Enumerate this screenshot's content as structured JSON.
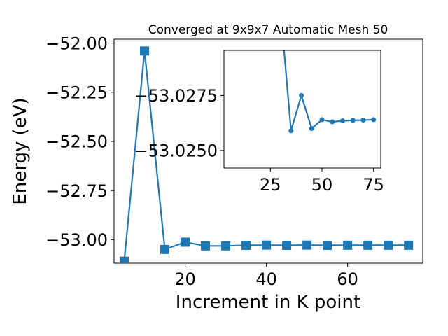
{
  "chart_data": [
    {
      "type": "line",
      "title": "Converged at 9x9x7 Automatic Mesh 50",
      "xlabel": "Increment in K point",
      "ylabel": "Energy (eV)",
      "xlim": [
        2.5,
        78.5
      ],
      "ylim": [
        -53.12,
        -51.98
      ],
      "x_ticks": [
        20,
        40,
        60
      ],
      "x_tick_labels": [
        "20",
        "40",
        "60"
      ],
      "y_ticks": [
        -53.0,
        -52.75,
        -52.5,
        -52.25,
        -52.0
      ],
      "y_tick_labels": [
        "−53.00",
        "−52.75",
        "−52.50",
        "−52.25",
        "−52.00"
      ],
      "marker": "square",
      "color": "#1f77b4",
      "series": [
        {
          "x": [
            5,
            10,
            15,
            20,
            25,
            30,
            35,
            40,
            45,
            50,
            55,
            60,
            65,
            70,
            75
          ],
          "y": [
            -53.11,
            -52.04,
            -53.05,
            -53.013,
            -53.032,
            -53.032,
            -53.029,
            -53.028,
            -53.029,
            -53.028,
            -53.029,
            -53.0285,
            -53.0287,
            -53.0286,
            -53.0286
          ]
        }
      ]
    },
    {
      "type": "line",
      "title": "",
      "xlabel": "",
      "ylabel": "",
      "xlim": [
        2.5,
        78.5
      ],
      "ylim": [
        -53.0242,
        -53.02955
      ],
      "x_ticks": [
        25,
        50,
        75
      ],
      "x_tick_labels": [
        "25",
        "50",
        "75"
      ],
      "y_ticks": [
        -53.025,
        -53.0275
      ],
      "y_tick_labels": [
        "−53.0250",
        "−53.0275"
      ],
      "marker": "circle",
      "color": "#1f77b4",
      "series": [
        {
          "x": [
            30,
            35,
            40,
            45,
            50,
            55,
            60,
            65,
            70,
            75
          ],
          "y": [
            -53.0313,
            -53.0259,
            -53.0275,
            -53.026,
            -53.0264,
            -53.0263,
            -53.02635,
            -53.02637,
            -53.02638,
            -53.0264
          ]
        }
      ]
    }
  ]
}
